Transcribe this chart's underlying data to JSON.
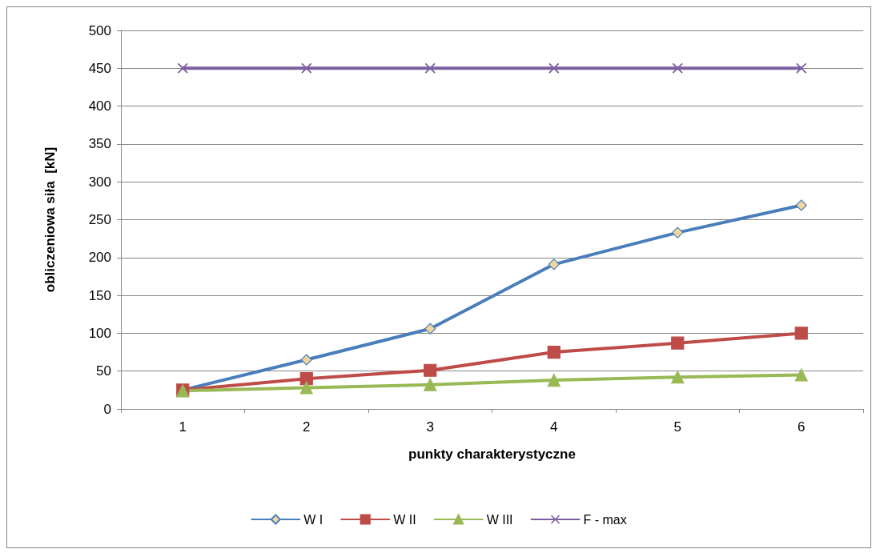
{
  "chart_data": {
    "type": "line",
    "xlabel": "punkty charakterystyczne",
    "ylabel": "obliczeniowa siła  [kN]",
    "categories": [
      "1",
      "2",
      "3",
      "4",
      "5",
      "6"
    ],
    "series": [
      {
        "name": "W I",
        "color": "#4a7ebb",
        "marker": "diamond",
        "values": [
          25,
          65,
          106,
          191,
          233,
          269
        ]
      },
      {
        "name": "W II",
        "color": "#be4b48",
        "marker": "square",
        "values": [
          25,
          40,
          51,
          75,
          87,
          100
        ]
      },
      {
        "name": "W III",
        "color": "#98b954",
        "marker": "triangle",
        "values": [
          24,
          28,
          32,
          38,
          42,
          45
        ]
      },
      {
        "name": "F - max",
        "color": "#7d5fa0",
        "marker": "cross",
        "values": [
          450,
          450,
          450,
          450,
          450,
          450
        ]
      }
    ],
    "ylim": [
      0,
      500
    ],
    "yticks": [
      0,
      50,
      100,
      150,
      200,
      250,
      300,
      350,
      400,
      450,
      500
    ],
    "grid": "y",
    "legend": "bottom",
    "line_style": "solid"
  }
}
